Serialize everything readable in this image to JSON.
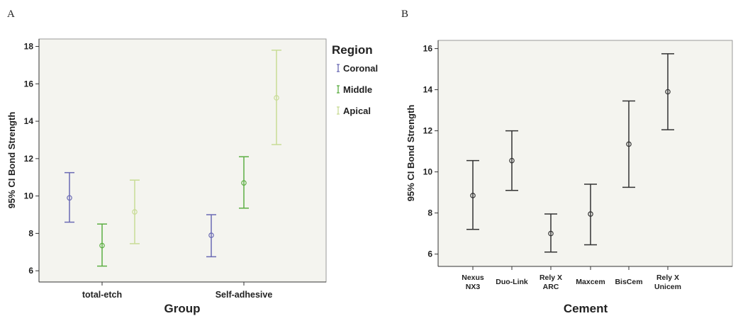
{
  "panels": {
    "a": {
      "letter": "A"
    },
    "b": {
      "letter": "B"
    }
  },
  "chart_data": [
    {
      "type": "errorbar",
      "panel": "A",
      "xlabel": "Group",
      "ylabel": "95% CI Bond Strength",
      "ylim": [
        5.4,
        18.4
      ],
      "yticks": [
        6,
        8,
        10,
        12,
        14,
        16,
        18
      ],
      "categories": [
        "total-etch",
        "Self-adhesive"
      ],
      "legend": {
        "title": "Region",
        "position": "right"
      },
      "grid": false,
      "series": [
        {
          "name": "Coronal",
          "color": "#6a6ab4",
          "mean": [
            9.9,
            7.9
          ],
          "lower": [
            8.6,
            6.75
          ],
          "upper": [
            11.25,
            9.0
          ]
        },
        {
          "name": "Middle",
          "color": "#5cae42",
          "mean": [
            7.35,
            10.7
          ],
          "lower": [
            6.25,
            9.35
          ],
          "upper": [
            8.5,
            12.1
          ]
        },
        {
          "name": "Apical",
          "color": "#c8dc96",
          "mean": [
            9.15,
            15.25
          ],
          "lower": [
            7.45,
            12.75
          ],
          "upper": [
            10.85,
            17.8
          ]
        }
      ]
    },
    {
      "type": "errorbar",
      "panel": "B",
      "xlabel": "Cement",
      "ylabel": "95% CI Bond Strength",
      "ylim": [
        5.4,
        16.4
      ],
      "yticks": [
        6,
        8,
        10,
        12,
        14,
        16
      ],
      "categories": [
        [
          "Nexus",
          "NX3"
        ],
        [
          "Duo-Link"
        ],
        [
          "Rely X",
          "ARC"
        ],
        [
          "Maxcem"
        ],
        [
          "BisCem"
        ],
        [
          "Rely X",
          "Unicem"
        ]
      ],
      "grid": false,
      "color": "#333333",
      "series": [
        {
          "mean": [
            8.85,
            10.55,
            7.0,
            7.95,
            11.35,
            13.9
          ],
          "lower": [
            7.2,
            9.1,
            6.1,
            6.45,
            9.25,
            12.05
          ],
          "upper": [
            10.55,
            12.0,
            7.95,
            9.4,
            13.45,
            15.75
          ]
        }
      ]
    }
  ]
}
